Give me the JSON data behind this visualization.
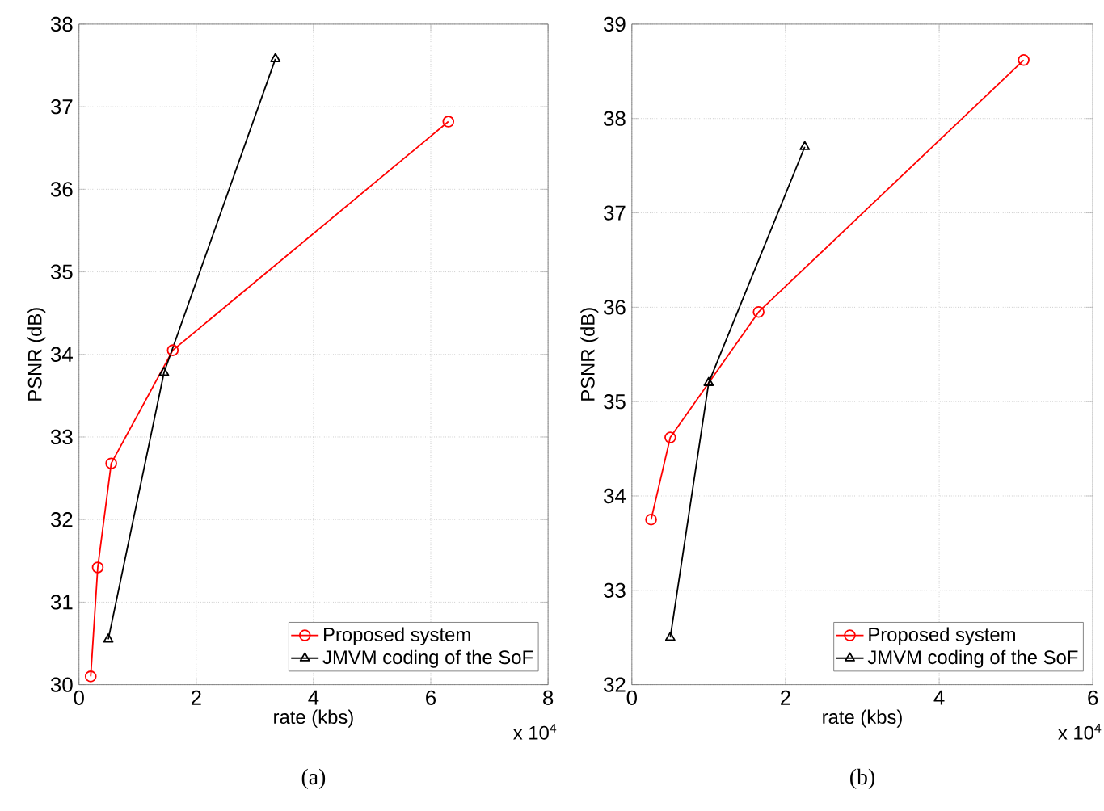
{
  "chart_data": [
    {
      "type": "line",
      "xlabel": "rate (kbs)",
      "ylabel": "PSNR (dB)",
      "xlim": [
        0,
        8
      ],
      "xticks": [
        0,
        2,
        4,
        6,
        8
      ],
      "ylim": [
        30,
        38
      ],
      "yticks": [
        30,
        31,
        32,
        33,
        34,
        35,
        36,
        37,
        38
      ],
      "grid": true,
      "legend": "bottom right",
      "annotations": [
        "x 10$^{4}$",
        "(a)"
      ],
      "series": [
        {
          "name": "Proposed system",
          "color": "#ff0000",
          "marker": "circle",
          "x": [
            0.2,
            0.32,
            0.55,
            1.6,
            6.3
          ],
          "values": [
            30.1,
            31.42,
            32.68,
            34.05,
            36.82
          ]
        },
        {
          "name": "JMVM coding of the SoF",
          "color": "#000000",
          "marker": "triangle",
          "x": [
            0.5,
            1.45,
            3.35
          ],
          "values": [
            30.55,
            33.78,
            37.58
          ]
        }
      ]
    },
    {
      "type": "line",
      "xlabel": "rate (kbs)",
      "ylabel": "PSNR (dB)",
      "xlim": [
        0,
        6
      ],
      "xticks": [
        0,
        2,
        4,
        6
      ],
      "ylim": [
        32,
        39
      ],
      "yticks": [
        32,
        33,
        34,
        35,
        36,
        37,
        38,
        39
      ],
      "grid": true,
      "legend": "bottom right",
      "annotations": [
        "x 10$^{4}$",
        "(b)"
      ],
      "series": [
        {
          "name": "Proposed system",
          "color": "#ff0000",
          "marker": "circle",
          "x": [
            0.25,
            0.5,
            1.65,
            5.1
          ],
          "values": [
            33.75,
            34.62,
            35.95,
            38.62
          ]
        },
        {
          "name": "JMVM coding of the SoF",
          "color": "#000000",
          "marker": "triangle",
          "x": [
            0.5,
            1.0,
            2.25
          ],
          "values": [
            32.5,
            35.2,
            37.7
          ]
        }
      ]
    }
  ]
}
